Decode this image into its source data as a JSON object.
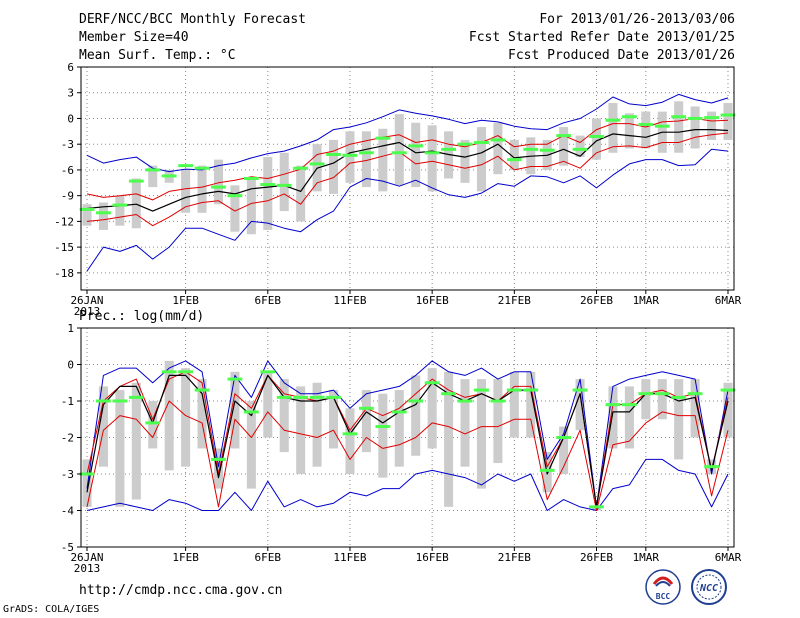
{
  "header": {
    "title": "DERF/NCC/BCC Monthly Forecast",
    "member_size": "Member Size=40",
    "variable": "Mean Surf. Temp.: °C",
    "period": "For 2013/01/26-2013/03/06",
    "started": "Fcst Started Refer Date 2013/01/25",
    "produced": "Fcst Produced Date 2013/01/26"
  },
  "footer": {
    "url": "http://cmdp.ncc.cma.gov.cn",
    "credit": "GrADS: COLA/IGES",
    "logo_bcc": "BCC",
    "logo_ncc": "NCC"
  },
  "colors": {
    "grid": "#8a8a8a",
    "box": "#cccccc",
    "median": "#4cff4c",
    "envelope": "#0000cc",
    "spread": "#e00000",
    "mean": "#000000"
  },
  "chart_data": [
    {
      "type": "line",
      "title": "Mean Surf. Temp.: °C",
      "x_day_start": 1,
      "x_day_end": 40,
      "x_ticks": [
        "26JAN",
        "1FEB",
        "6FEB",
        "11FEB",
        "16FEB",
        "21FEB",
        "26FEB",
        "1MAR",
        "6MAR"
      ],
      "x_tick_days": [
        1,
        7,
        12,
        17,
        22,
        27,
        32,
        35,
        40
      ],
      "x_year_label": "2013",
      "ylim": [
        -20,
        6
      ],
      "y_ticks": [
        6,
        3,
        0,
        -3,
        -6,
        -9,
        -12,
        -15,
        -18
      ],
      "max": [
        -4.3,
        -5.2,
        -4.8,
        -4.5,
        -5.8,
        -6.2,
        -5.9,
        -6.0,
        -5.5,
        -5.2,
        -4.6,
        -4.1,
        -3.8,
        -3.2,
        -2.5,
        -1.3,
        -1.0,
        -0.5,
        0.2,
        1.0,
        0.6,
        0.3,
        -0.1,
        -0.6,
        -0.2,
        -0.4,
        -0.9,
        -1.2,
        -1.3,
        -0.5,
        0.0,
        1.1,
        2.5,
        1.7,
        1.5,
        1.9,
        2.8,
        2.2,
        1.8,
        2.4
      ],
      "min": [
        -17.8,
        -15.0,
        -15.5,
        -14.8,
        -16.4,
        -15.0,
        -12.8,
        -12.8,
        -13.5,
        -14.2,
        -12.0,
        -12.2,
        -12.8,
        -13.2,
        -11.8,
        -10.8,
        -8.0,
        -7.0,
        -7.3,
        -7.9,
        -7.2,
        -8.1,
        -8.9,
        -9.2,
        -8.7,
        -7.6,
        -7.9,
        -6.7,
        -6.8,
        -7.5,
        -6.7,
        -8.1,
        -6.6,
        -5.3,
        -4.8,
        -4.8,
        -5.5,
        -5.4,
        -3.6,
        -3.8
      ],
      "upper": [
        -8.8,
        -9.2,
        -9.0,
        -8.8,
        -9.5,
        -8.5,
        -8.2,
        -8.0,
        -7.5,
        -7.2,
        -6.8,
        -7.0,
        -6.5,
        -5.9,
        -4.2,
        -3.8,
        -3.0,
        -2.6,
        -2.2,
        -1.9,
        -2.8,
        -2.5,
        -3.0,
        -3.3,
        -2.8,
        -2.0,
        -3.3,
        -3.0,
        -3.0,
        -2.0,
        -2.8,
        -1.3,
        -0.6,
        -0.6,
        -1.0,
        -0.4,
        -0.3,
        0.0,
        -0.3,
        -0.2
      ],
      "mean": [
        -10.5,
        -10.3,
        -10.2,
        -10.0,
        -10.8,
        -10.0,
        -9.2,
        -8.8,
        -8.5,
        -8.8,
        -8.2,
        -8.0,
        -7.8,
        -8.5,
        -5.8,
        -5.2,
        -4.0,
        -3.6,
        -3.2,
        -2.8,
        -4.0,
        -3.8,
        -4.2,
        -4.5,
        -4.0,
        -3.0,
        -4.6,
        -4.4,
        -4.3,
        -3.6,
        -4.4,
        -2.6,
        -1.8,
        -2.0,
        -2.2,
        -1.6,
        -1.6,
        -1.3,
        -1.3,
        -1.4
      ],
      "lower": [
        -12.0,
        -11.8,
        -11.5,
        -11.2,
        -12.5,
        -11.5,
        -10.3,
        -9.8,
        -9.6,
        -10.8,
        -9.9,
        -9.6,
        -8.8,
        -10.0,
        -7.5,
        -6.9,
        -5.2,
        -4.9,
        -4.4,
        -3.9,
        -5.3,
        -5.0,
        -5.4,
        -5.8,
        -5.4,
        -4.4,
        -6.0,
        -5.6,
        -5.6,
        -5.0,
        -5.8,
        -4.0,
        -3.3,
        -3.2,
        -3.4,
        -2.8,
        -2.8,
        -2.2,
        -1.9,
        -1.7
      ],
      "box_top": [
        -10.0,
        -9.8,
        -9.0,
        -7.0,
        -5.5,
        -6.0,
        -6.0,
        -5.5,
        -4.8,
        -7.8,
        -7.0,
        -4.5,
        -4.0,
        -5.5,
        -3.0,
        -2.5,
        -1.5,
        -1.5,
        -1.2,
        0.5,
        -0.5,
        -0.8,
        -1.5,
        -2.5,
        -1.0,
        -0.5,
        -2.5,
        -2.2,
        -2.5,
        -1.0,
        -2.0,
        0.0,
        1.8,
        0.6,
        0.8,
        0.8,
        2.0,
        1.4,
        0.8,
        1.8
      ],
      "box_bottom": [
        -12.5,
        -13.0,
        -12.5,
        -12.8,
        -8.0,
        -7.5,
        -11.0,
        -11.0,
        -10.0,
        -13.2,
        -13.5,
        -13.0,
        -10.8,
        -12.0,
        -8.5,
        -8.8,
        -7.5,
        -8.0,
        -8.5,
        -7.8,
        -8.0,
        -8.5,
        -7.0,
        -7.5,
        -8.5,
        -6.5,
        -6.0,
        -6.5,
        -6.0,
        -5.5,
        -4.5,
        -4.8,
        -4.0,
        -3.5,
        -3.5,
        -4.0,
        -4.0,
        -3.5,
        -2.5,
        -2.5
      ],
      "median_marks": [
        -10.6,
        -11.0,
        -10.1,
        -7.3,
        -6.0,
        -6.7,
        -5.5,
        -5.8,
        -8.0,
        -9.0,
        -7.0,
        -7.7,
        -7.8,
        -5.8,
        -5.3,
        -4.2,
        -4.3,
        -4.0,
        -2.3,
        -4.0,
        -3.2,
        -4.0,
        -3.6,
        -3.0,
        -2.8,
        -2.5,
        -4.8,
        -3.6,
        -3.7,
        -2.0,
        -3.6,
        -2.1,
        -0.2,
        0.2,
        -0.7,
        -0.9,
        0.2,
        0.0,
        0.1,
        0.4
      ]
    },
    {
      "type": "line",
      "title": "Prec.: log(mm/d)",
      "x_day_start": 1,
      "x_day_end": 40,
      "x_ticks": [
        "26JAN",
        "1FEB",
        "6FEB",
        "11FEB",
        "16FEB",
        "21FEB",
        "26FEB",
        "1MAR",
        "6MAR"
      ],
      "x_tick_days": [
        1,
        7,
        12,
        17,
        22,
        27,
        32,
        35,
        40
      ],
      "x_year_label": "2013",
      "ylim": [
        -5,
        1
      ],
      "y_ticks": [
        1,
        0,
        -1,
        -2,
        -3,
        -4,
        -5
      ],
      "max": [
        -3.4,
        -0.3,
        -0.1,
        -0.1,
        -0.5,
        -0.1,
        0.1,
        -0.2,
        -2.8,
        -0.3,
        -0.9,
        0.1,
        -0.5,
        -0.8,
        -0.8,
        -0.7,
        -1.2,
        -0.8,
        -0.7,
        -0.6,
        -0.3,
        0.1,
        -0.2,
        -0.3,
        -0.1,
        -0.4,
        -0.2,
        -0.2,
        -2.6,
        -1.9,
        -0.4,
        -3.9,
        -0.6,
        -0.4,
        -0.3,
        -0.2,
        -0.3,
        -0.4,
        -3.0,
        -0.7
      ],
      "min": [
        -4.0,
        -3.9,
        -3.8,
        -3.9,
        -4.0,
        -3.7,
        -3.8,
        -4.0,
        -4.0,
        -3.5,
        -4.0,
        -3.2,
        -3.9,
        -3.7,
        -3.9,
        -3.8,
        -3.5,
        -3.6,
        -3.4,
        -3.4,
        -3.0,
        -2.9,
        -3.0,
        -3.1,
        -3.3,
        -3.0,
        -3.2,
        -3.0,
        -4.0,
        -3.7,
        -3.9,
        -4.0,
        -3.4,
        -3.3,
        -2.6,
        -2.6,
        -2.9,
        -3.0,
        -3.9,
        -3.0
      ],
      "upper": [
        -3.0,
        -1.0,
        -0.6,
        -0.4,
        -1.5,
        -0.4,
        -0.2,
        -0.5,
        -3.0,
        -0.8,
        -1.2,
        -0.3,
        -0.8,
        -0.9,
        -1.0,
        -0.9,
        -1.8,
        -1.2,
        -1.4,
        -1.2,
        -0.8,
        -0.4,
        -0.7,
        -0.9,
        -0.8,
        -1.0,
        -0.6,
        -0.6,
        -2.8,
        -2.0,
        -0.8,
        -3.9,
        -1.1,
        -1.1,
        -0.8,
        -0.7,
        -0.9,
        -0.8,
        -2.9,
        -0.9
      ],
      "mean": [
        -3.5,
        -1.1,
        -0.6,
        -0.6,
        -1.6,
        -0.3,
        -0.3,
        -0.8,
        -3.1,
        -1.0,
        -1.4,
        -0.3,
        -0.9,
        -1.0,
        -1.0,
        -0.9,
        -1.9,
        -1.3,
        -1.6,
        -1.3,
        -1.1,
        -0.5,
        -0.8,
        -1.0,
        -0.8,
        -1.0,
        -0.7,
        -0.7,
        -3.0,
        -2.0,
        -0.8,
        -3.9,
        -1.3,
        -1.3,
        -0.8,
        -0.8,
        -1.0,
        -0.9,
        -2.9,
        -1.0
      ],
      "lower": [
        -3.9,
        -1.8,
        -1.4,
        -1.5,
        -2.0,
        -1.0,
        -1.4,
        -1.6,
        -3.9,
        -1.5,
        -2.0,
        -1.3,
        -1.8,
        -1.9,
        -2.0,
        -1.8,
        -2.6,
        -2.0,
        -2.3,
        -2.2,
        -2.0,
        -1.6,
        -1.7,
        -1.9,
        -1.7,
        -1.7,
        -1.5,
        -1.5,
        -3.7,
        -2.8,
        -1.8,
        -4.0,
        -2.2,
        -2.1,
        -1.6,
        -1.3,
        -1.4,
        -1.4,
        -3.6,
        -1.8
      ],
      "box_top": [
        -2.6,
        -0.6,
        -0.7,
        -0.5,
        -1.0,
        0.1,
        -0.1,
        -0.4,
        -2.3,
        -0.2,
        -1.0,
        -0.2,
        -0.4,
        -0.6,
        -0.5,
        -0.7,
        -1.2,
        -0.7,
        -0.8,
        -0.7,
        -0.3,
        -0.1,
        -0.2,
        -0.4,
        -0.4,
        -0.4,
        -0.2,
        -0.2,
        -2.4,
        -1.7,
        -0.4,
        -3.9,
        -0.6,
        -0.6,
        -0.4,
        -0.4,
        -0.4,
        -0.4,
        -2.6,
        -0.5
      ],
      "box_bottom": [
        -3.9,
        -2.8,
        -3.9,
        -3.7,
        -2.3,
        -2.9,
        -2.8,
        -2.3,
        -3.4,
        -2.3,
        -3.4,
        -2.0,
        -2.4,
        -3.0,
        -2.8,
        -2.3,
        -3.0,
        -2.4,
        -3.1,
        -2.8,
        -2.5,
        -2.3,
        -3.9,
        -2.8,
        -3.4,
        -2.7,
        -2.0,
        -2.0,
        -3.5,
        -3.0,
        -1.8,
        -4.0,
        -2.3,
        -2.3,
        -1.5,
        -1.5,
        -2.6,
        -2.0,
        -3.0,
        -2.0
      ],
      "median_marks": [
        -3.0,
        -1.0,
        -1.0,
        -0.9,
        -1.6,
        -0.2,
        -0.2,
        -0.7,
        -2.6,
        -0.4,
        -1.3,
        -0.2,
        -0.9,
        -0.9,
        -0.9,
        -0.9,
        -1.9,
        -1.2,
        -1.7,
        -1.3,
        -1.0,
        -0.5,
        -0.8,
        -1.0,
        -0.7,
        -1.0,
        -0.7,
        -0.7,
        -2.9,
        -2.0,
        -0.7,
        -3.9,
        -1.1,
        -1.1,
        -0.8,
        -0.8,
        -0.9,
        -0.8,
        -2.8,
        -0.7
      ]
    }
  ]
}
